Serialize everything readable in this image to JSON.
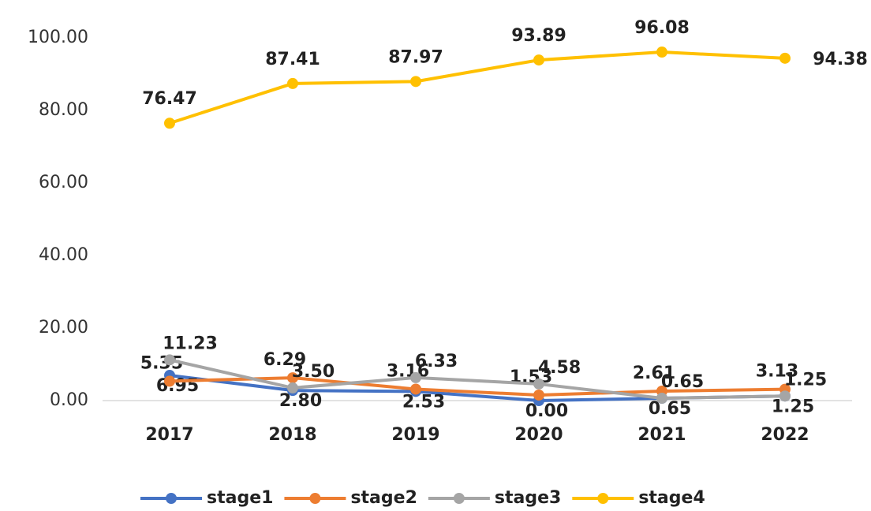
{
  "chart_data": {
    "type": "line",
    "categories": [
      "2017",
      "2018",
      "2019",
      "2020",
      "2021",
      "2022"
    ],
    "series": [
      {
        "name": "stage1",
        "color": "#4472c4",
        "values": [
          6.95,
          2.8,
          2.53,
          0.0,
          0.65,
          1.25
        ],
        "value_labels": [
          "6.95",
          "2.80",
          "2.53",
          "0.00",
          "0.65",
          "1.25"
        ]
      },
      {
        "name": "stage2",
        "color": "#ed7d31",
        "values": [
          5.35,
          6.29,
          3.16,
          1.53,
          2.61,
          3.13
        ],
        "value_labels": [
          "5.35",
          "6.29",
          "3.16",
          "1.53",
          "2.61",
          "3.13"
        ]
      },
      {
        "name": "stage3",
        "color": "#a5a5a5",
        "values": [
          11.23,
          3.5,
          6.33,
          4.58,
          0.65,
          1.25
        ],
        "value_labels": [
          "11.23",
          "3.50",
          "6.33",
          "4.58",
          "0.65",
          "1.25"
        ]
      },
      {
        "name": "stage4",
        "color": "#ffc000",
        "values": [
          76.47,
          87.41,
          87.97,
          93.89,
          96.08,
          94.38
        ],
        "value_labels": [
          "76.47",
          "87.41",
          "87.97",
          "93.89",
          "96.08",
          "94.38"
        ]
      }
    ],
    "ylim": [
      0,
      100
    ],
    "yticks": [
      {
        "value": 0,
        "label": "0.00"
      },
      {
        "value": 20,
        "label": "20.00"
      },
      {
        "value": 40,
        "label": "40.00"
      },
      {
        "value": 60,
        "label": "60.00"
      },
      {
        "value": 80,
        "label": "80.00"
      },
      {
        "value": 100,
        "label": "100.00"
      }
    ],
    "legend": "bottom"
  }
}
